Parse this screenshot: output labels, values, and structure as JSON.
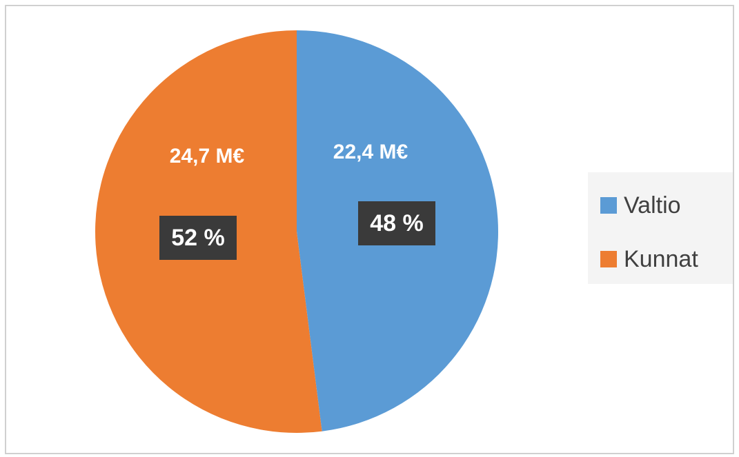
{
  "chart_data": {
    "type": "pie",
    "categories": [
      "Valtio",
      "Kunnat"
    ],
    "values": [
      48,
      52
    ],
    "value_labels": [
      "48 %",
      "52 %"
    ],
    "amounts": [
      22.4,
      24.7
    ],
    "amount_labels": [
      "22,4 M€",
      "24,7 M€"
    ],
    "colors": [
      "#5b9bd5",
      "#ed7d31"
    ],
    "legend": "right"
  }
}
